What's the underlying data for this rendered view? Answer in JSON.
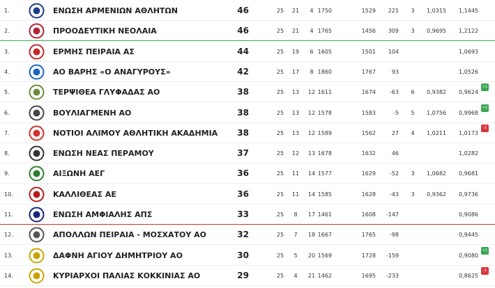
{
  "table": {
    "rows": [
      {
        "rank": "1.",
        "team": "ΕΝΩΣΗ ΑΡΜΕΝΙΩΝ ΑΘΛΗΤΩΝ",
        "points": 46,
        "played": 25,
        "wins": 21,
        "losses": 4,
        "scored": 1750,
        "conceded": 1529,
        "diff": 221,
        "tied_group": 3,
        "tied_ratio": "1,0315",
        "ratio": "1,1445"
      },
      {
        "rank": "2.",
        "team": "ΠΡΟΟΔΕΥΤΙΚΗ ΝΕΟΛΑΙΑ",
        "points": 46,
        "played": 25,
        "wins": 21,
        "losses": 4,
        "scored": 1765,
        "conceded": 1456,
        "diff": 309,
        "tied_group": 3,
        "tied_ratio": "0,9695",
        "ratio": "1,2122"
      },
      {
        "rank": "3.",
        "team": "ΕΡΜΗΣ ΠΕΙΡΑΙΑ ΑΣ",
        "points": 44,
        "played": 25,
        "wins": 19,
        "losses": 6,
        "scored": 1605,
        "conceded": 1501,
        "diff": 104,
        "ratio": "1,0693"
      },
      {
        "rank": "4.",
        "team": "ΑΟ ΒΑΡΗΣ «Ο ΑΝΑΓΥΡΟΥΣ»",
        "points": 42,
        "played": 25,
        "wins": 17,
        "losses": 8,
        "scored": 1860,
        "conceded": 1767,
        "diff": 93,
        "ratio": "1,0526"
      },
      {
        "rank": "5.",
        "team": "ΤΕΡΨΙΘΕΑ ΓΛΥΦΑΔΑΣ ΑΟ",
        "points": 38,
        "played": 25,
        "wins": 13,
        "losses": 12,
        "scored": 1611,
        "conceded": 1674,
        "diff": -63,
        "tied_group": 6,
        "tied_ratio": "0,9382",
        "ratio": "0,9624",
        "change": "+1"
      },
      {
        "rank": "6.",
        "team": "ΒΟΥΛΙΑΓΜΕΝΗ ΑΟ",
        "points": 38,
        "played": 25,
        "wins": 13,
        "losses": 12,
        "scored": 1578,
        "conceded": 1583,
        "diff": -5,
        "tied_group": 5,
        "tied_ratio": "1,0756",
        "ratio": "0,9968",
        "change": "+1"
      },
      {
        "rank": "7.",
        "team": "ΝΟΤΙΟΙ ΑΛΙΜΟΥ ΑΘΛΗΤΙΚΗ ΑΚΑΔΗΜΙΑ",
        "points": 38,
        "played": 25,
        "wins": 13,
        "losses": 12,
        "scored": 1589,
        "conceded": 1562,
        "diff": 27,
        "tied_group": 4,
        "tied_ratio": "1,0211",
        "ratio": "1,0173",
        "change": "-2"
      },
      {
        "rank": "8.",
        "team": "ΕΝΩΣΗ ΝΕΑΣ ΠΕΡΑΜΟΥ",
        "points": 37,
        "played": 25,
        "wins": 12,
        "losses": 13,
        "scored": 1678,
        "conceded": 1632,
        "diff": 46,
        "ratio": "1,0282"
      },
      {
        "rank": "9.",
        "team": "ΑΙΞΩΝΗ ΑΕΓ",
        "points": 36,
        "played": 25,
        "wins": 11,
        "losses": 14,
        "scored": 1577,
        "conceded": 1629,
        "diff": -52,
        "tied_group": 3,
        "tied_ratio": "1,0682",
        "ratio": "0,9681"
      },
      {
        "rank": "10.",
        "team": "ΚΑΛΛΙΘΕΑΣ ΑΕ",
        "points": 36,
        "played": 25,
        "wins": 11,
        "losses": 14,
        "scored": 1585,
        "conceded": 1628,
        "diff": -43,
        "tied_group": 3,
        "tied_ratio": "0,9362",
        "ratio": "0,9736"
      },
      {
        "rank": "11.",
        "team": "ΕΝΩΣΗ ΑΜΦΙΑΛΗΣ ΑΠΣ",
        "points": 33,
        "played": 25,
        "wins": 8,
        "losses": 17,
        "scored": 1461,
        "conceded": 1608,
        "diff": -147,
        "ratio": "0,9086"
      },
      {
        "rank": "12.",
        "team": "ΑΠΟΛΛΩΝ ΠΕΙΡΑΙΑ - ΜΟΣΧΑΤΟΥ ΑΟ",
        "points": 32,
        "played": 25,
        "wins": 7,
        "losses": 18,
        "scored": 1667,
        "conceded": 1765,
        "diff": -98,
        "ratio": "0,9445"
      },
      {
        "rank": "13.",
        "team": "ΔΑΦΝΗ ΑΓΙΟΥ ΔΗΜΗΤΡΙΟΥ ΑΟ",
        "points": 30,
        "played": 25,
        "wins": 5,
        "losses": 20,
        "scored": 1569,
        "conceded": 1728,
        "diff": -159,
        "ratio": "0,9080",
        "change": "+1"
      },
      {
        "rank": "14.",
        "team": "ΚΥΡΙΑΡΧΟΙ ΠΑΛΙΑΣ ΚΟΚΚΙΝΙΑΣ ΑΟ",
        "points": 29,
        "played": 25,
        "wins": 4,
        "losses": 21,
        "scored": 1462,
        "conceded": 1695,
        "diff": -233,
        "ratio": "0,8625",
        "change": "-1"
      }
    ]
  }
}
